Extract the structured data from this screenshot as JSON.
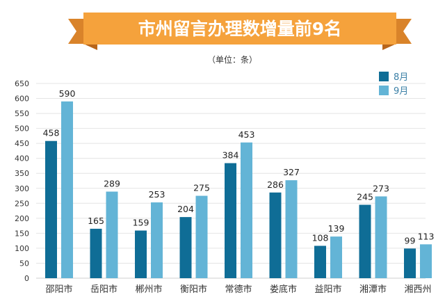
{
  "colors": {
    "banner": "#f5a23c",
    "banner_ribbon": "#d9832a",
    "banner_fold": "#b8651a",
    "series_aug": "#0f6d96",
    "series_sep": "#63b4d6",
    "grid": "#e4e4e4"
  },
  "chart_data": {
    "type": "bar",
    "title": "市州留言办理数增量前9名",
    "unit_label": "（单位：条）",
    "categories": [
      "邵阳市",
      "岳阳市",
      "郴州市",
      "衡阳市",
      "常德市",
      "娄底市",
      "益阳市",
      "湘潭市",
      "湘西州"
    ],
    "series": [
      {
        "name": "8月",
        "values": [
          458,
          165,
          159,
          204,
          384,
          286,
          108,
          245,
          99
        ]
      },
      {
        "name": "9月",
        "values": [
          590,
          289,
          253,
          275,
          453,
          327,
          139,
          273,
          113
        ]
      }
    ],
    "y_ticks": [
      "0",
      "50",
      "100",
      "150",
      "200",
      "250",
      "300",
      "350",
      "400",
      "450",
      "500",
      "550",
      "600",
      "650"
    ],
    "ylim": [
      0,
      650
    ],
    "grid": true,
    "legend_position": "top-right"
  }
}
